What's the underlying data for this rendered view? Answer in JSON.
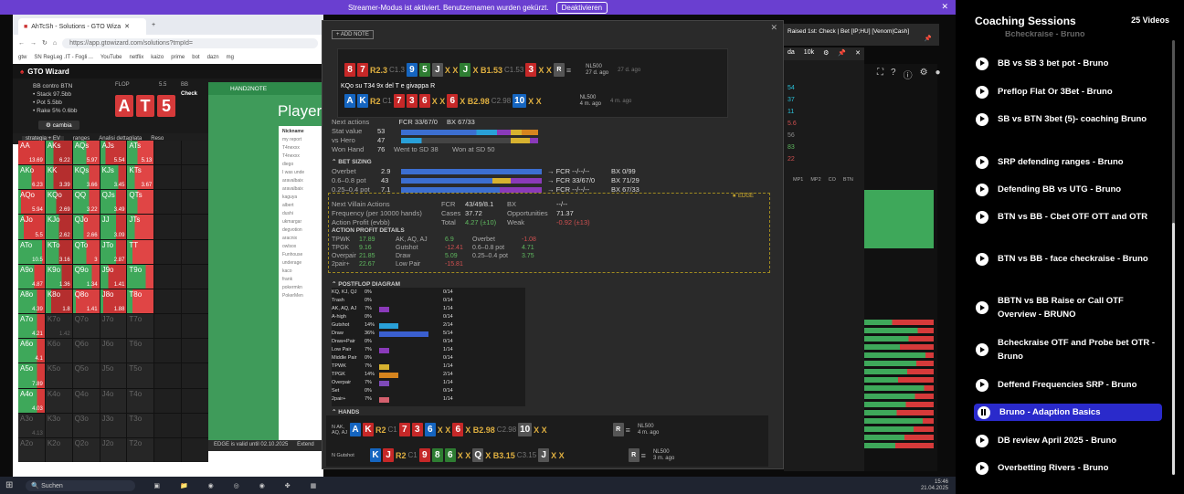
{
  "streamer": {
    "text": "Streamer-Modus ist aktiviert. Benutzernamen wurden gekürzt.",
    "button": "Deaktivieren"
  },
  "browser": {
    "tab": "AhTcSh - Solutions - GTO Wiza",
    "url": "https://app.gtowizard.com/solutions?tmpId=",
    "bookmarks": [
      "gtw",
      "SN RegLeg .IT - Fogli ...",
      "YouTube",
      "netflix",
      "kaizo",
      "prime",
      "bot",
      "dazn",
      "mg"
    ]
  },
  "gto": {
    "title": "GTO Wizard",
    "spot": "BB contro BTN",
    "stack": "Stack 97.5bb",
    "pot": "Pot 5.5bb",
    "rake": "Rake 5% 0.6bb",
    "cambia": "cambia",
    "flop_label": "FLOP",
    "flop_amt": "5.5",
    "bb_label": "BB",
    "check": "Check",
    "flop": [
      "A",
      "T",
      "5"
    ],
    "tabs": [
      "strategia + EV",
      "ranges",
      "Analisi dettagliata",
      "Reso"
    ],
    "grid": [
      [
        "AA",
        "AKs",
        "AQs",
        "AJs",
        "ATs"
      ],
      [
        "13.69",
        "6.22",
        "5.97",
        "5.54",
        "5.13"
      ],
      [
        "AKo",
        "KK",
        "KQs",
        "KJs",
        "KTs"
      ],
      [
        "6.23",
        "3.39",
        "3.66",
        "3.45",
        "3.67"
      ],
      [
        "AQo",
        "KQo",
        "QQ",
        "QJs",
        "QTs"
      ],
      [
        "5.94",
        "2.69",
        "3.22",
        "3.49",
        ""
      ],
      [
        "AJo",
        "KJo",
        "QJo",
        "JJ",
        "JTs"
      ],
      [
        "5.5",
        "2.62",
        "2.66",
        "3.09",
        ""
      ],
      [
        "ATo",
        "KTo",
        "QTo",
        "JTo",
        "TT"
      ],
      [
        "10.5",
        "3.16",
        "3",
        "2.87",
        ""
      ],
      [
        "A9o",
        "K9o",
        "Q9o",
        "J9o",
        "T9o"
      ],
      [
        "4.87",
        "1.36",
        "1.34",
        "1.41",
        ""
      ],
      [
        "A8o",
        "K8o",
        "Q8o",
        "J8o",
        "T8o"
      ],
      [
        "4.39",
        "1.8",
        "1.41",
        "1.88",
        ""
      ],
      [
        "A7o",
        "K7o",
        "Q7o",
        "J7o",
        "T7o"
      ],
      [
        "4.21",
        "1.42",
        "",
        "",
        ""
      ],
      [
        "A6o",
        "K6o",
        "Q6o",
        "J6o",
        "T6o"
      ],
      [
        "4.1",
        "",
        "",
        "",
        ""
      ],
      [
        "A5o",
        "K5o",
        "Q5o",
        "J5o",
        "T5o"
      ],
      [
        "7.89",
        "",
        "",
        "",
        ""
      ],
      [
        "A4o",
        "K4o",
        "Q4o",
        "J4o",
        "T4o"
      ],
      [
        "4.03",
        "",
        "",
        "",
        ""
      ],
      [
        "A3o",
        "K3o",
        "Q3o",
        "J3o",
        "T3o"
      ],
      [
        "4.13",
        "",
        "",
        "",
        ""
      ],
      [
        "A2o",
        "K2o",
        "Q2o",
        "J2o",
        "T2o"
      ],
      [
        "",
        "",
        "",
        "",
        ""
      ]
    ]
  },
  "h2n": {
    "header": "HAND2NOTE",
    "players": "Players",
    "nickname": "Nickname",
    "list": [
      "my report",
      "T4nexxx",
      "T4nexxx",
      "diego",
      "I was unde",
      "aravalbaix",
      "aravalbaix",
      "kaguya",
      "albert",
      "dushi",
      "ukmargar",
      "degvotion",
      "aracnix",
      "owlsox",
      "Funhouse",
      "underage",
      "kaco",
      "frank",
      "pokermkn",
      "PokerMen"
    ],
    "footer": "EDGE is valid until 02.10.2025",
    "extend": "Extend"
  },
  "hud": {
    "addnote": "+ ADD NOTE",
    "hand1": {
      "cards": [
        "8",
        "7"
      ],
      "a1": "R2.3",
      "a1b": "C1.3",
      "board": [
        "9",
        "5",
        "J"
      ],
      "x1": "X X",
      "turn": "J",
      "a2": "X B1.53",
      "a2b": "C1.53",
      "river": "3",
      "x2": "X X",
      "stake": "NL500",
      "when": "27 d. ago",
      "when2": "27 d. ago"
    },
    "note": "KQo su T34 9x  del T e  givappa R",
    "hand2": {
      "cards": [
        "A",
        "K"
      ],
      "a1": "R2",
      "a1b": "C1",
      "board": [
        "7",
        "3",
        "6"
      ],
      "x1": "X X",
      "turn": "6",
      "a2": "X B2.98",
      "a2b": "C2.98",
      "river": "10",
      "x2": "X X",
      "stake": "NL500",
      "when": "4 m. ago",
      "when2": "4 m. ago"
    },
    "next_actions": "Next actions",
    "fcr": "FCR 33/67/0",
    "bx": "BX 67/33",
    "stat_value": "Stat value",
    "sv": "53",
    "vs_hero": "vs Hero",
    "vh": "47",
    "won_hand": "Won Hand",
    "wh": "76",
    "wtsd": "Went to SD 38",
    "wsd": "Won at SD 50",
    "bet_sizing": "BET SIZING",
    "sizing": [
      {
        "l": "Overbet",
        "v": "2.9",
        "f": "→ FCR --/--/--",
        "b": "BX 0/99"
      },
      {
        "l": "0.6–0.8 pot",
        "v": "43",
        "f": "→ FCR 33/67/0",
        "b": "BX 71/29"
      },
      {
        "l": "0.25–0.4 pot",
        "v": "7.1",
        "f": "→ FCR --/--/--",
        "b": "BX 67/33"
      }
    ],
    "edge": "★ EDGE",
    "nva": "Next Villain Actions",
    "fcr2": "FCR",
    "fcr2v": "43/49/8.1",
    "bx2": "BX",
    "bx2v": "--/--",
    "freq": "Frequency (per 10000 hands)",
    "cases": "Cases",
    "casesv": "37.72",
    "opp": "Opportunities",
    "oppv": "71.37",
    "ap": "Action Profit (evbb)",
    "total": "Total",
    "totalv": "4.27 (±10)",
    "weak": "Weak",
    "weakv": "-0.92 (±13)",
    "apd": "ACTION PROFIT DETAILS",
    "details": [
      [
        "TPWK",
        "17.89",
        "AK, AQ, AJ",
        "6.9",
        "Overbet",
        "-1.08"
      ],
      [
        "TPGK",
        "9.16",
        "Gutshot",
        "-12.41",
        "0.6–0.8 pot",
        "4.71"
      ],
      [
        "Overpair",
        "21.85",
        "Draw",
        "5.09",
        "0.25–0.4 pot",
        "3.75"
      ],
      [
        "2pair+",
        "22.67",
        "Low Pair",
        "-15.81",
        "",
        ""
      ]
    ],
    "postflop": "POSTFLOP DIAGRAM",
    "pf": [
      [
        "KQ, KJ, QJ",
        "0%",
        "0/14",
        0,
        "#888"
      ],
      [
        "Trash",
        "0%",
        "0/14",
        0,
        "#888"
      ],
      [
        "AK, AQ, AJ",
        "7%",
        "1/14",
        0.07,
        "#8a3ab9"
      ],
      [
        "A-high",
        "0%",
        "0/14",
        0,
        "#888"
      ],
      [
        "Gutshot",
        "14%",
        "2/14",
        0.14,
        "#29a0d8"
      ],
      [
        "Draw",
        "36%",
        "5/14",
        0.36,
        "#3a5fcf"
      ],
      [
        "Draw+Pair",
        "0%",
        "0/14",
        0,
        "#888"
      ],
      [
        "Low Pair",
        "7%",
        "1/14",
        0.07,
        "#8a3ab9"
      ],
      [
        "Middle Pair",
        "0%",
        "0/14",
        0,
        "#888"
      ],
      [
        "TPWK",
        "7%",
        "1/14",
        0.07,
        "#d7b230"
      ],
      [
        "TPGK",
        "14%",
        "2/14",
        0.14,
        "#d6841e"
      ],
      [
        "Overpair",
        "7%",
        "1/14",
        0.07,
        "#7e4ab8"
      ],
      [
        "Set",
        "0%",
        "0/14",
        0,
        "#888"
      ],
      [
        "2pair+",
        "7%",
        "1/14",
        0.07,
        "#d4606e"
      ]
    ],
    "hands": "HANDS",
    "hand3": {
      "label": "N AK, AQ, AJ",
      "cards": [
        "A",
        "K"
      ],
      "a1": "R2",
      "a1b": "C1",
      "board": [
        "7",
        "3",
        "6"
      ],
      "x1": "X X",
      "turn": "6",
      "a2": "X B2.98",
      "a2b": "C2.98",
      "river": "10",
      "x2": "X X",
      "stake": "NL500",
      "when": "4 m. ago"
    },
    "hand4": {
      "label": "N Gutshot",
      "cards": [
        "K",
        "J"
      ],
      "a1": "R2",
      "a1b": "C1",
      "board": [
        "9",
        "8",
        "6"
      ],
      "x1": "X X",
      "turn": "Q",
      "a2": "X B3.15",
      "a2b": "C3.15",
      "river": "J",
      "x2": "X X",
      "stake": "NL500",
      "when": "3 m. ago"
    }
  },
  "side": {
    "title": "Raised 1st: Check | Bet [IP;HU] [Venom|Cash]",
    "da": "da",
    "k": "10k",
    "nums": [
      "54",
      "37",
      "11",
      "5.6",
      "56",
      "83",
      "22"
    ],
    "pos": [
      "MP1",
      "MP2",
      "CO",
      "BTN"
    ]
  },
  "taskbar": {
    "search": "Suchen",
    "time": "15:46",
    "date": "21.04.2025"
  },
  "coach": {
    "title": "Coaching Sessions",
    "count": "25 Videos",
    "partial": "Bcheckraise - Bruno",
    "items": [
      "BB vs SB 3 bet pot - Bruno",
      "Preflop Flat Or 3Bet - Bruno",
      "SB vs BTN 3bet (5)- coaching Bruno",
      "SRP defending ranges - Bruno",
      "Defending BB vs UTG - Bruno",
      "BTN vs BB - Cbet OTF OTT and OTR",
      "BTN vs BB - face checkraise - Bruno",
      "BBTN vs BB Raise or Call OTF Overview - BRUNO",
      "Bcheckraise OTF and Probe bet OTR - Bruno",
      "Deffend Frequencies SRP - Bruno",
      "Bruno - Adaption Basics",
      "DB review April 2025 - Bruno",
      "Overbetting Rivers - Bruno"
    ],
    "active_index": 10
  }
}
